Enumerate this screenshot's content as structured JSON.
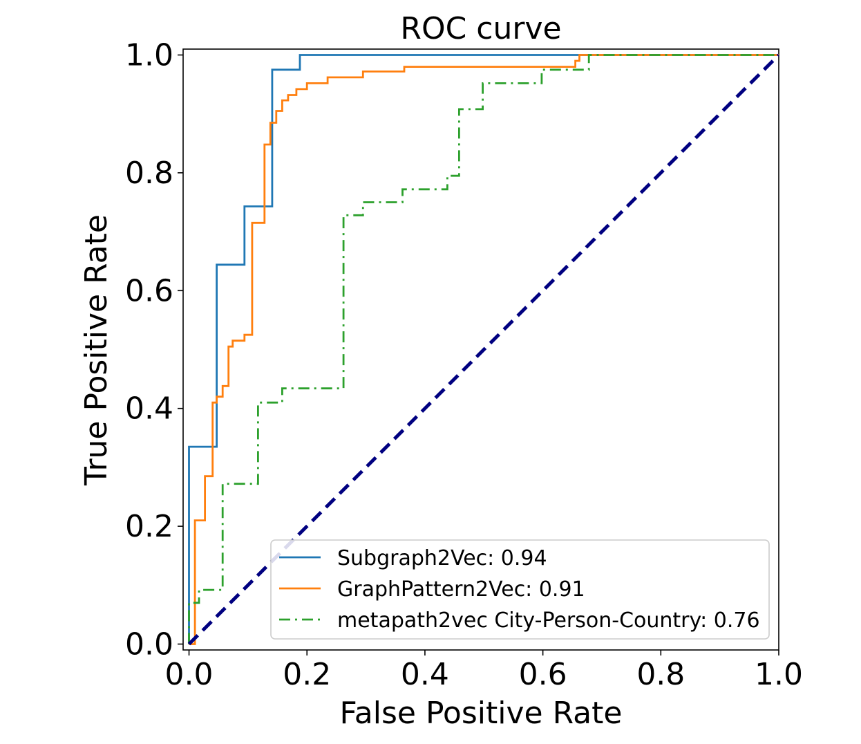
{
  "chart_data": {
    "type": "line",
    "title": "ROC curve",
    "xlabel": "False Positive Rate",
    "ylabel": "True Positive Rate",
    "xlim": [
      0.0,
      1.0
    ],
    "ylim": [
      0.0,
      1.0
    ],
    "grid": false,
    "x_ticks": [
      "0.0",
      "0.2",
      "0.4",
      "0.6",
      "0.8",
      "1.0"
    ],
    "y_ticks": [
      "0.0",
      "0.2",
      "0.4",
      "0.6",
      "0.8",
      "1.0"
    ],
    "legend_position": "lower-right",
    "series": [
      {
        "name": "Subgraph2Vec: 0.94",
        "color": "#1f77b4",
        "style": "solid",
        "points": [
          [
            0.0,
            0.0
          ],
          [
            0.0,
            0.335
          ],
          [
            0.047,
            0.335
          ],
          [
            0.047,
            0.644
          ],
          [
            0.094,
            0.644
          ],
          [
            0.094,
            0.743
          ],
          [
            0.141,
            0.743
          ],
          [
            0.141,
            0.975
          ],
          [
            0.188,
            0.975
          ],
          [
            0.188,
            1.0
          ],
          [
            1.0,
            1.0
          ]
        ]
      },
      {
        "name": "GraphPattern2Vec: 0.91",
        "color": "#ff7f0e",
        "style": "solid",
        "points": [
          [
            0.0,
            0.0
          ],
          [
            0.01,
            0.0
          ],
          [
            0.01,
            0.21
          ],
          [
            0.027,
            0.21
          ],
          [
            0.027,
            0.285
          ],
          [
            0.04,
            0.285
          ],
          [
            0.04,
            0.41
          ],
          [
            0.047,
            0.41
          ],
          [
            0.047,
            0.42
          ],
          [
            0.057,
            0.42
          ],
          [
            0.057,
            0.438
          ],
          [
            0.067,
            0.438
          ],
          [
            0.067,
            0.505
          ],
          [
            0.074,
            0.505
          ],
          [
            0.074,
            0.515
          ],
          [
            0.094,
            0.515
          ],
          [
            0.094,
            0.525
          ],
          [
            0.107,
            0.525
          ],
          [
            0.107,
            0.715
          ],
          [
            0.128,
            0.715
          ],
          [
            0.128,
            0.848
          ],
          [
            0.138,
            0.848
          ],
          [
            0.138,
            0.885
          ],
          [
            0.148,
            0.885
          ],
          [
            0.148,
            0.905
          ],
          [
            0.158,
            0.905
          ],
          [
            0.158,
            0.923
          ],
          [
            0.168,
            0.923
          ],
          [
            0.168,
            0.932
          ],
          [
            0.182,
            0.932
          ],
          [
            0.182,
            0.942
          ],
          [
            0.2,
            0.942
          ],
          [
            0.2,
            0.952
          ],
          [
            0.235,
            0.952
          ],
          [
            0.235,
            0.962
          ],
          [
            0.295,
            0.962
          ],
          [
            0.295,
            0.972
          ],
          [
            0.365,
            0.972
          ],
          [
            0.365,
            0.98
          ],
          [
            0.655,
            0.98
          ],
          [
            0.655,
            0.99
          ],
          [
            0.662,
            0.99
          ],
          [
            0.662,
            1.0
          ],
          [
            1.0,
            1.0
          ]
        ]
      },
      {
        "name": "metapath2vec City-Person-Country: 0.76",
        "color": "#2ca02c",
        "style": "dashdot",
        "points": [
          [
            0.0,
            0.0
          ],
          [
            0.0,
            0.07
          ],
          [
            0.017,
            0.07
          ],
          [
            0.017,
            0.092
          ],
          [
            0.057,
            0.092
          ],
          [
            0.057,
            0.272
          ],
          [
            0.117,
            0.272
          ],
          [
            0.117,
            0.41
          ],
          [
            0.158,
            0.41
          ],
          [
            0.158,
            0.434
          ],
          [
            0.262,
            0.434
          ],
          [
            0.262,
            0.728
          ],
          [
            0.295,
            0.728
          ],
          [
            0.295,
            0.75
          ],
          [
            0.362,
            0.75
          ],
          [
            0.362,
            0.772
          ],
          [
            0.438,
            0.772
          ],
          [
            0.438,
            0.795
          ],
          [
            0.458,
            0.795
          ],
          [
            0.458,
            0.908
          ],
          [
            0.498,
            0.908
          ],
          [
            0.498,
            0.952
          ],
          [
            0.598,
            0.952
          ],
          [
            0.598,
            0.975
          ],
          [
            0.678,
            0.975
          ],
          [
            0.678,
            1.0
          ],
          [
            1.0,
            1.0
          ]
        ]
      },
      {
        "name": "",
        "color": "#000080",
        "style": "dashed",
        "points": [
          [
            0.0,
            0.0
          ],
          [
            1.0,
            1.0
          ]
        ]
      }
    ]
  }
}
